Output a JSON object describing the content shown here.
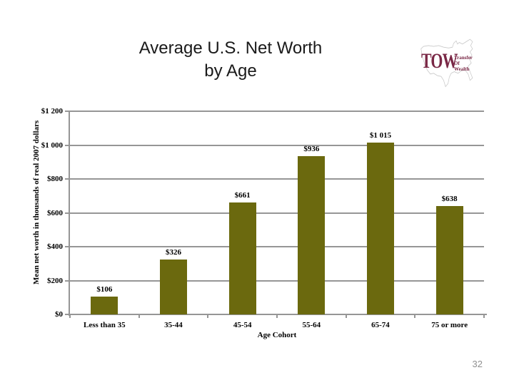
{
  "slide": {
    "title_line1": "Average U.S. Net Worth",
    "title_line2": "by Age",
    "page_number": "32"
  },
  "logo": {
    "acronym": "TOW",
    "word1": "Transfer",
    "word2": "Of",
    "word3": "Wealth",
    "maroon_color": "#7A2846",
    "map_outline_color": "#C9C9C9"
  },
  "chart_data": {
    "type": "bar",
    "title": "",
    "categories": [
      "Less than 35",
      "35-44",
      "45-54",
      "55-64",
      "65-74",
      "75 or more"
    ],
    "values": [
      106,
      326,
      661,
      936,
      1015,
      638
    ],
    "data_labels": [
      "$106",
      "$326",
      "$661",
      "$936",
      "$1 015",
      "$638"
    ],
    "xlabel": "Age Cohort",
    "ylabel": "Mean net worth in thousands of real 2007 dollars",
    "ylim": [
      0,
      1200
    ],
    "ytick_step": 200,
    "ytick_labels": [
      "$0",
      "$200",
      "$400",
      "$600",
      "$800",
      "$1 000",
      "$1 200"
    ],
    "grid": true,
    "legend": false,
    "bar_color": "#6B690E",
    "axis_color": "#969696"
  }
}
